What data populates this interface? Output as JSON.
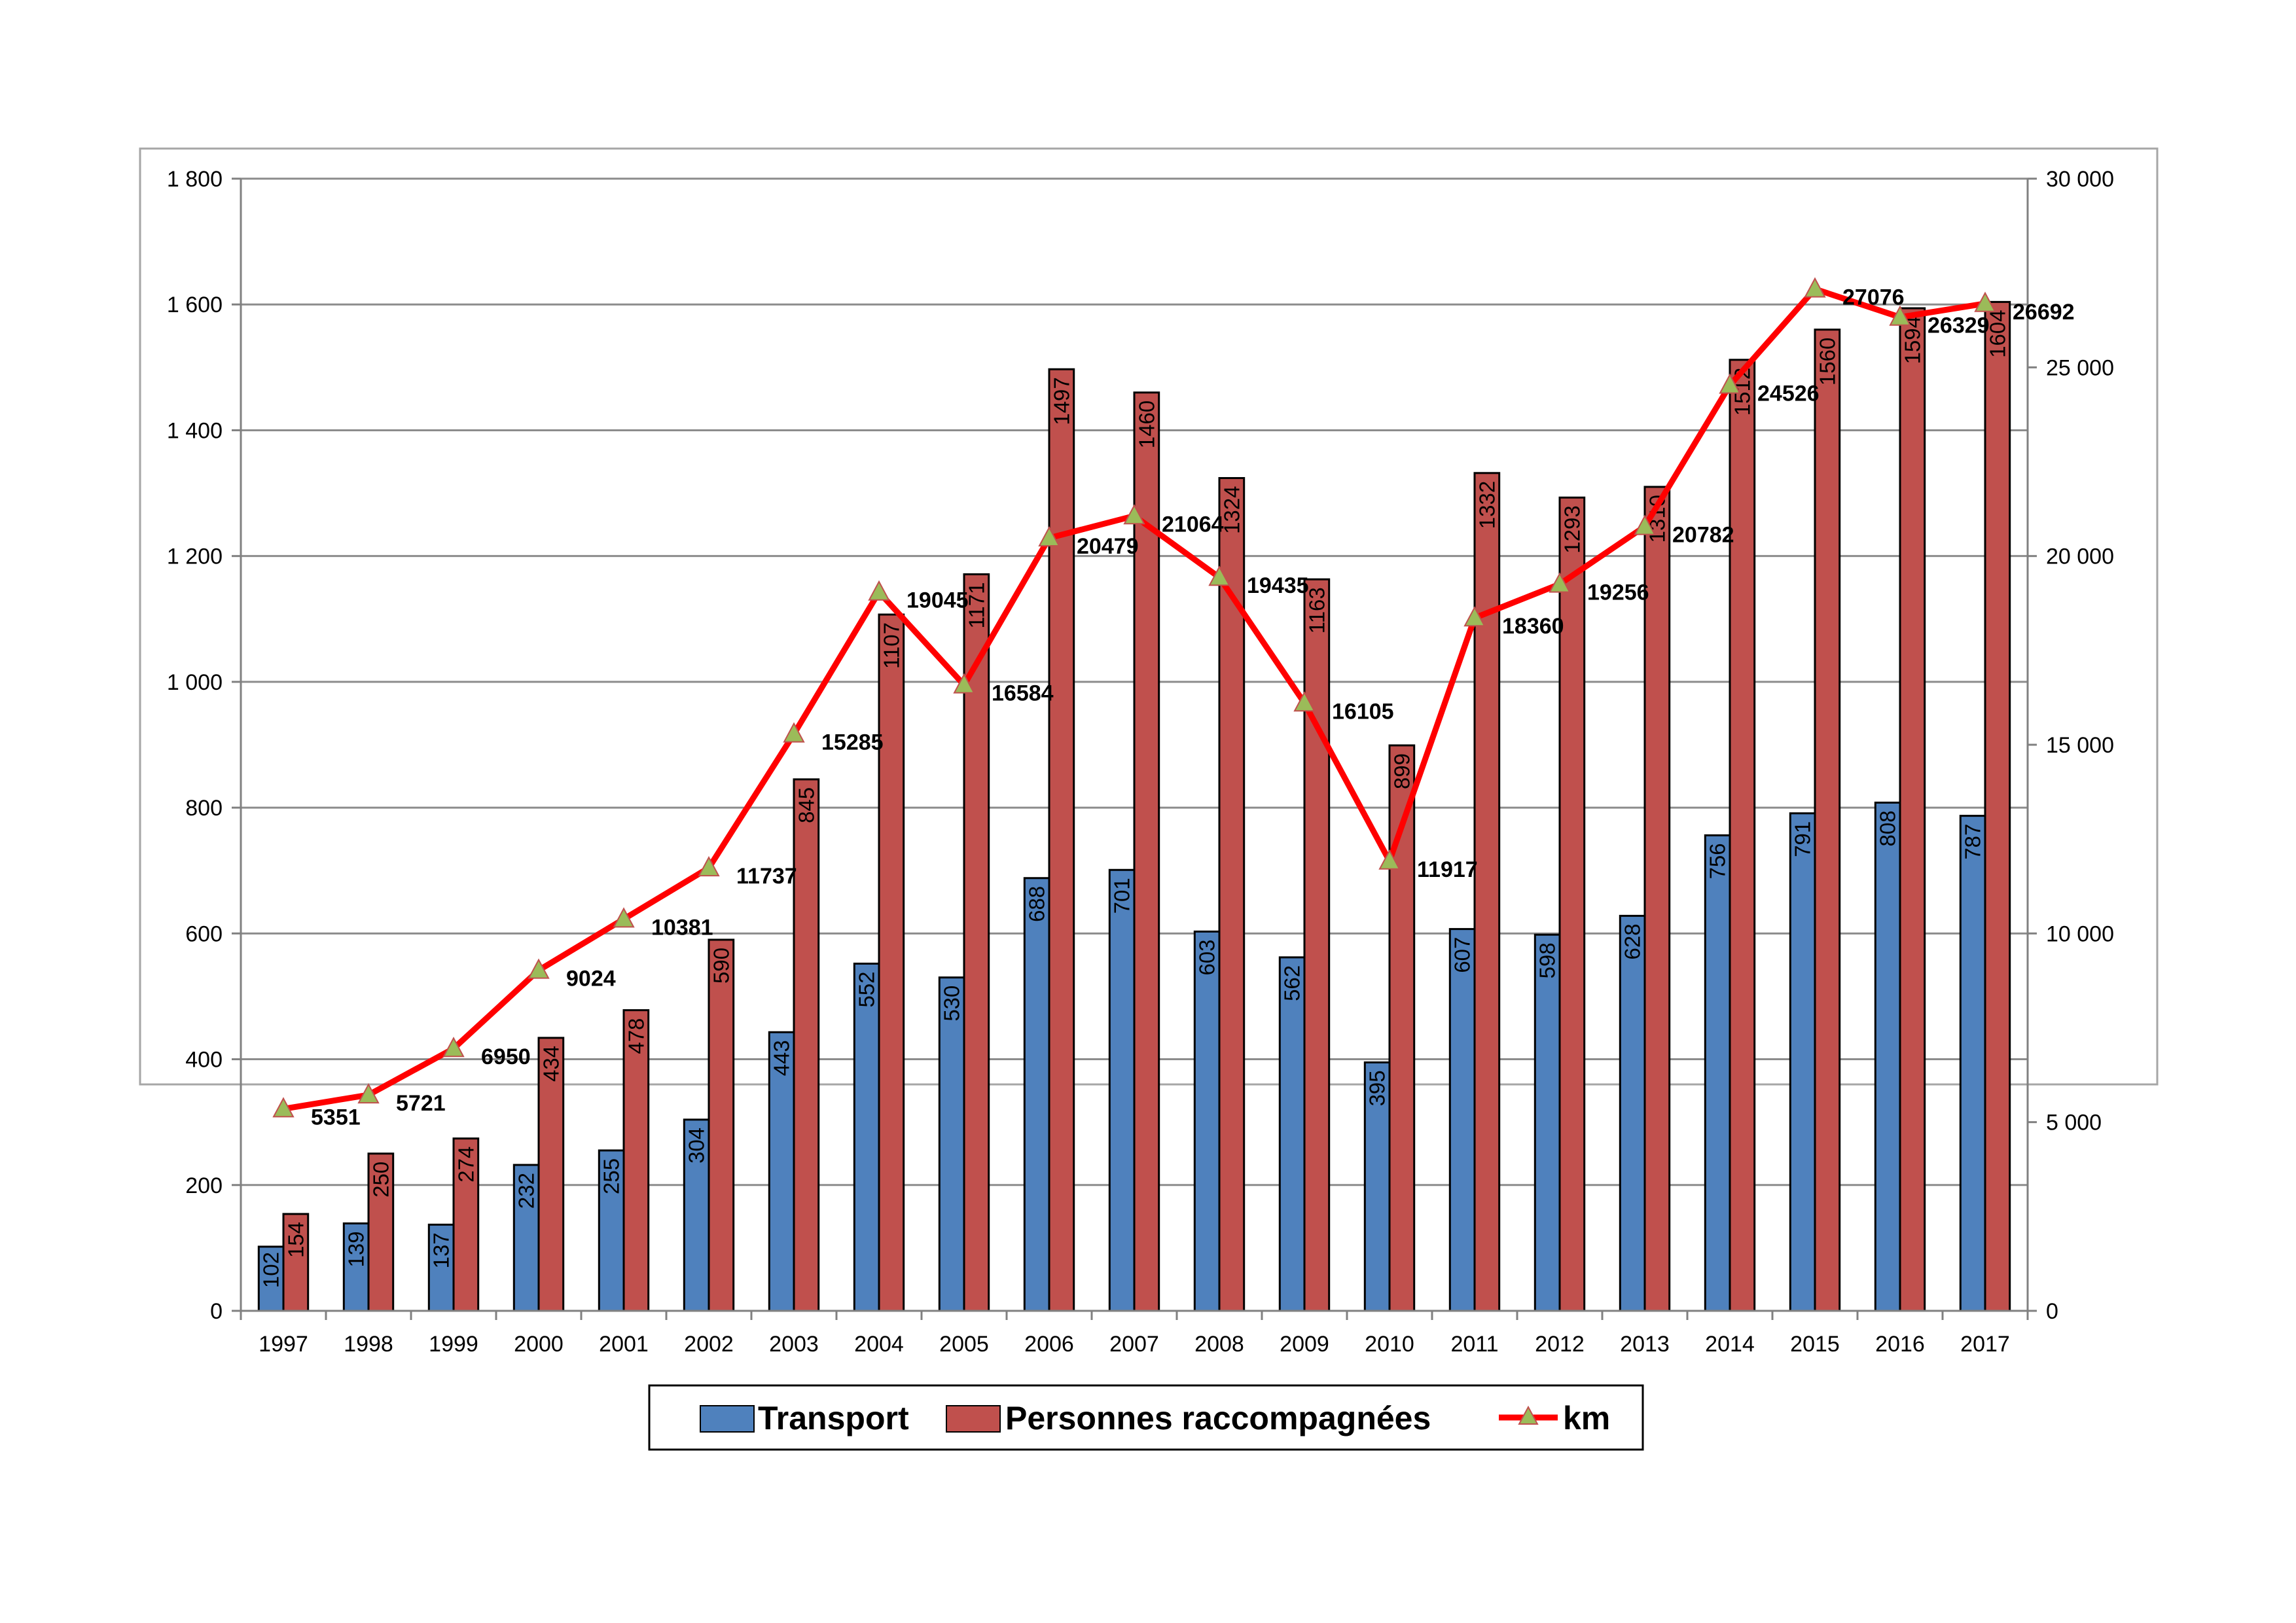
{
  "chart_data": {
    "type": "bar",
    "categories": [
      "1997",
      "1998",
      "1999",
      "2000",
      "2001",
      "2002",
      "2003",
      "2004",
      "2005",
      "2006",
      "2007",
      "2008",
      "2009",
      "2010",
      "2011",
      "2012",
      "2013",
      "2014",
      "2015",
      "2016",
      "2017"
    ],
    "series": [
      {
        "name": "Transport",
        "type": "bar",
        "axis": "left",
        "color": "#4F81BD",
        "values": [
          102,
          139,
          137,
          232,
          255,
          304,
          443,
          552,
          530,
          688,
          701,
          603,
          562,
          395,
          607,
          598,
          628,
          756,
          791,
          808,
          787
        ]
      },
      {
        "name": "Personnes raccompagnées",
        "type": "bar",
        "axis": "left",
        "color": "#C0504D",
        "values": [
          154,
          250,
          274,
          434,
          478,
          590,
          845,
          1107,
          1171,
          1497,
          1460,
          1324,
          1163,
          899,
          1332,
          1293,
          1310,
          1512,
          1560,
          1594,
          1604
        ]
      },
      {
        "name": "km",
        "type": "line",
        "axis": "right",
        "color": "#FF0000",
        "marker_color": "#9BBB59",
        "values": [
          5351,
          5721,
          6950,
          9024,
          10381,
          11737,
          15285,
          19045,
          16584,
          20479,
          21064,
          19435,
          16105,
          11917,
          18360,
          19256,
          20782,
          24526,
          27076,
          26329,
          26692
        ]
      }
    ],
    "y_left": {
      "ylim": [
        0,
        1800
      ],
      "ticks": [
        0,
        200,
        400,
        600,
        800,
        1000,
        1200,
        1400,
        1600,
        1800
      ],
      "tick_labels": [
        "0",
        "200",
        "400",
        "600",
        "800",
        "1 000",
        "1 200",
        "1 400",
        "1 600",
        "1 800"
      ]
    },
    "y_right": {
      "ylim": [
        0,
        30000
      ],
      "ticks": [
        0,
        5000,
        10000,
        15000,
        20000,
        25000,
        30000
      ],
      "tick_labels": [
        "0",
        "5 000",
        "10 000",
        "15 000",
        "20 000",
        "25 000",
        "30 000"
      ]
    },
    "grid": true,
    "legend": {
      "position": "bottom",
      "entries": [
        "Transport",
        "Personnes raccompagnées",
        "km"
      ]
    },
    "colors": {
      "frame": "#A6A6A6",
      "grid": "#8C8C8C",
      "axis": "#808080"
    }
  }
}
